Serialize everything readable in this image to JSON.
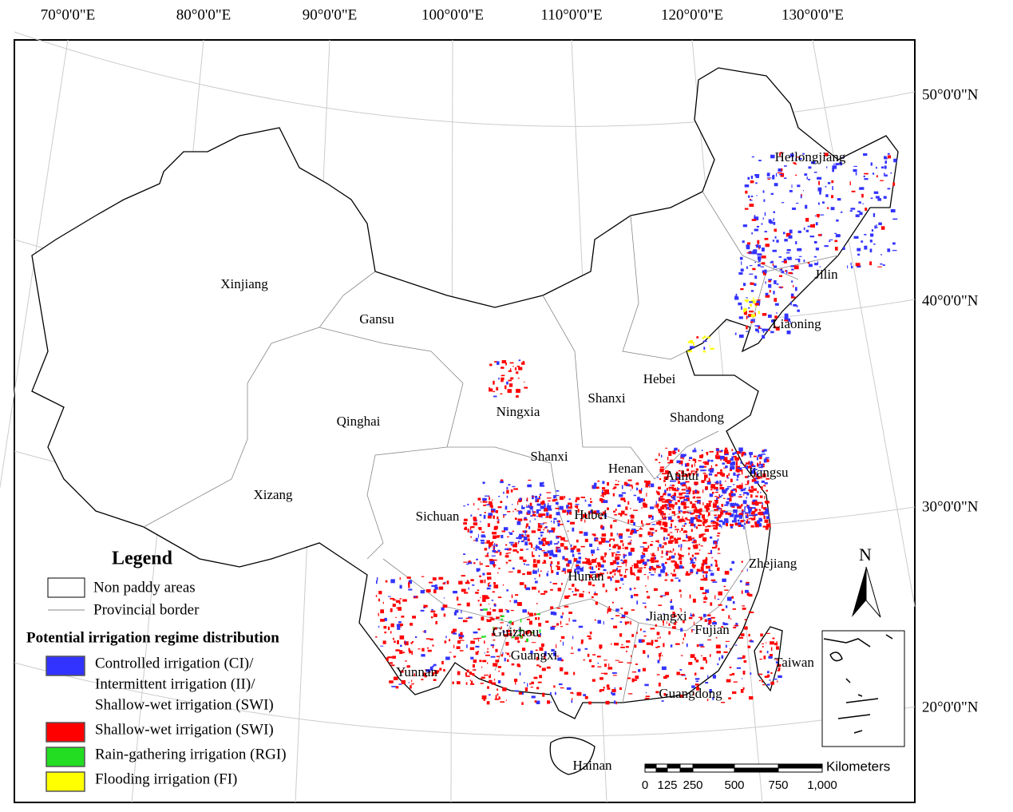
{
  "graticule": {
    "longitude_labels": [
      "70°0'0\"E",
      "80°0'0\"E",
      "90°0'0\"E",
      "100°0'0\"E",
      "110°0'0\"E",
      "120°0'0\"E",
      "130°0'0\"E"
    ],
    "latitude_labels": [
      "50°0'0\"N",
      "40°0'0\"N",
      "30°0'0\"N",
      "20°0'0\"N"
    ]
  },
  "provinces": [
    "Xinjiang",
    "Gansu",
    "Qinghai",
    "Xizang",
    "Sichuan",
    "Yunnan",
    "Guizhou",
    "Guangxi",
    "Hunan",
    "Hubei",
    "Shanxi",
    "Ningxia",
    "Shanxi",
    "Henan",
    "Hebei",
    "Shandong",
    "Anhui",
    "Jiangsu",
    "Zhejiang",
    "Jiangxi",
    "Fujian",
    "Guangdong",
    "Hainan",
    "Taiwan",
    "Heilongjiang",
    "Jilin",
    "Liaoning"
  ],
  "legend": {
    "title": "Legend",
    "non_paddy": "Non paddy areas",
    "border": "Provincial border",
    "subtitle": "Potential irrigation regime distribution",
    "regimes": [
      {
        "lines": [
          "Controlled irrigation (CI)/",
          "Intermittent irrigation (II)/",
          "Shallow-wet irrigation (SWI)"
        ],
        "color": "#3333ff"
      },
      {
        "lines": [
          "Shallow-wet irrigation (SWI)"
        ],
        "color": "#ff0000"
      },
      {
        "lines": [
          "Rain-gathering irrigation (RGI)"
        ],
        "color": "#22dd22"
      },
      {
        "lines": [
          "Flooding irrigation (FI)"
        ],
        "color": "#ffff00"
      }
    ]
  },
  "scale_bar": {
    "unit": "Kilometers",
    "labels": [
      "0",
      "125",
      "250",
      "500",
      "750",
      "1,000"
    ]
  },
  "north_arrow": "N"
}
